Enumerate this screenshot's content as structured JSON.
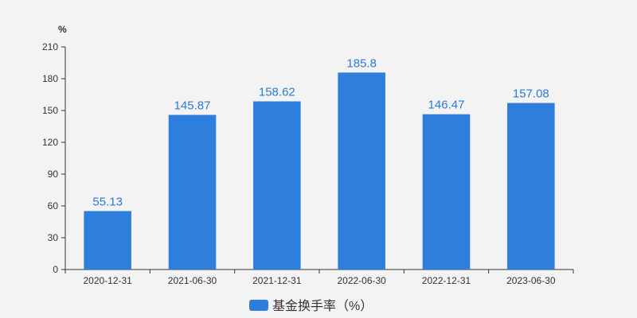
{
  "chart_data": {
    "type": "bar",
    "title": "",
    "xlabel": "",
    "ylabel": "",
    "y_unit": "%",
    "categories": [
      "2020-12-31",
      "2021-06-30",
      "2021-12-31",
      "2022-06-30",
      "2022-12-31",
      "2023-06-30"
    ],
    "series": [
      {
        "name": "基金换手率（%）",
        "values": [
          55.13,
          145.87,
          158.62,
          185.8,
          146.47,
          157.08
        ],
        "labels": [
          "55.13",
          "145.87",
          "158.62",
          "185.8",
          "146.47",
          "157.08"
        ]
      }
    ],
    "ylim": [
      0,
      210
    ],
    "yticks": [
      0,
      30,
      60,
      90,
      120,
      150,
      180,
      210
    ],
    "grid": false,
    "legend_position": "bottom-center",
    "colors": {
      "bar": "#2e7fdd",
      "label": "#2b7bd6",
      "axis": "#333333"
    }
  }
}
